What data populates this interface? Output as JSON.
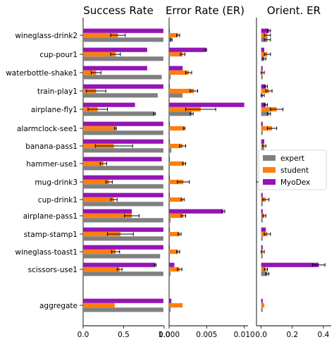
{
  "colors": {
    "expert": "#808080",
    "student": "#ff7f0e",
    "myodex": "#9414b4"
  },
  "chart_data": [
    {
      "type": "bar",
      "orientation": "horizontal",
      "title": "Success Rate",
      "categories": [
        "wineglass-drink2",
        "cup-pour1",
        "waterbottle-shake1",
        "train-play1",
        "airplane-fly1",
        "alarmclock-see1",
        "banana-pass1",
        "hammer-use1",
        "mug-drink3",
        "cup-drink1",
        "airplane-pass1",
        "stamp-stamp1",
        "wineglass-toast1",
        "scissors-use1",
        "aggregate"
      ],
      "xlim": [
        0,
        1.0
      ],
      "xticks": [
        "0.0",
        "0.5",
        "1.0"
      ],
      "tick_values": [
        0,
        0.5,
        1.0
      ],
      "series": [
        {
          "name": "MyoDex",
          "values": [
            0.99,
            0.79,
            0.79,
            0.99,
            0.64,
            0.99,
            0.99,
            0.97,
            0.99,
            0.99,
            0.6,
            0.99,
            0.99,
            0.89,
            0.99
          ],
          "err": [
            0,
            0,
            0,
            0,
            0,
            0,
            0,
            0,
            0,
            0,
            0,
            0,
            0,
            0.01,
            0
          ]
        },
        {
          "name": "student",
          "values": [
            0.43,
            0.4,
            0.16,
            0.16,
            0.18,
            0.4,
            0.38,
            0.25,
            0.32,
            0.38,
            0.6,
            0.46,
            0.4,
            0.45,
            0.39
          ],
          "err": [
            0.09,
            0.06,
            0.06,
            0.12,
            0.12,
            0.01,
            0.23,
            0.04,
            0.04,
            0.04,
            0.09,
            0.16,
            0.05,
            0.03,
            0
          ]
        },
        {
          "name": "expert",
          "values": [
            0.99,
            0.99,
            0.97,
            0.92,
            0.88,
            0.99,
            0.99,
            0.99,
            0.99,
            0.99,
            0.99,
            0.99,
            0.95,
            0.99,
            0.99
          ],
          "err": [
            0,
            0,
            0,
            0,
            0.01,
            0,
            0,
            0,
            0,
            0,
            0,
            0,
            0,
            0,
            0
          ]
        }
      ]
    },
    {
      "type": "bar",
      "orientation": "horizontal",
      "title": "Error Rate (ER)",
      "xlim": [
        0,
        0.0105
      ],
      "xticks": [
        "0.000",
        "0.005",
        "0.010"
      ],
      "tick_values": [
        0,
        0.005,
        0.01
      ],
      "series": [
        {
          "name": "MyoDex",
          "values": [
            0.0001,
            0.0049,
            0.0018,
            0.0001,
            0.01,
            0.0001,
            0.0001,
            0.0001,
            0.0001,
            0.0001,
            0.0072,
            0.0001,
            0.0001,
            0.0007,
            0.0003
          ],
          "err": [
            0,
            0.0001,
            0,
            0,
            0,
            0,
            0,
            0,
            0,
            0,
            0.0002,
            0,
            0,
            0,
            0
          ]
        },
        {
          "name": "student",
          "values": [
            0.0012,
            0.0018,
            0.0026,
            0.0033,
            0.0042,
            0.002,
            0.0018,
            0.002,
            0.0019,
            0.0018,
            0.0019,
            0.0014,
            0.0012,
            0.0014,
            0.0018
          ],
          "err": [
            0.0002,
            0.0003,
            0.0004,
            0.0005,
            0.002,
            0.0001,
            0.0004,
            0.0002,
            0.0008,
            0.0002,
            0.0003,
            0.0002,
            0.0002,
            0.0003,
            0
          ]
        },
        {
          "name": "expert",
          "values": [
            0.0003,
            0.0001,
            0.0002,
            0.0018,
            0.003,
            0.0001,
            0.0003,
            0.0001,
            0.0001,
            0.0001,
            0.0002,
            0.0001,
            0.0001,
            0.0002,
            0.0002
          ],
          "err": [
            0.0001,
            0,
            0,
            0,
            0.0002,
            0,
            0,
            0,
            0,
            0,
            0,
            0,
            0,
            0,
            0
          ]
        }
      ]
    },
    {
      "type": "bar",
      "orientation": "horizontal",
      "title": "Orient. ER",
      "xlim": [
        -0.03,
        0.45
      ],
      "xticks": [
        "0.0",
        "0.2",
        "0.4"
      ],
      "tick_values": [
        0,
        0.2,
        0.4
      ],
      "series": [
        {
          "name": "MyoDex",
          "values": [
            0.05,
            0.02,
            0.01,
            0.03,
            0.03,
            0.01,
            0.02,
            0.01,
            0.01,
            0.01,
            0.01,
            0.03,
            0.01,
            0.37,
            0.01
          ],
          "err": [
            0.01,
            0,
            0,
            0.01,
            0.01,
            0,
            0,
            0,
            0,
            0,
            0,
            0,
            0,
            0.04,
            0
          ]
        },
        {
          "name": "student",
          "values": [
            0.04,
            0.04,
            0.01,
            0.05,
            0.1,
            0.07,
            0.02,
            0.02,
            0.02,
            0.03,
            0.02,
            0.04,
            0.01,
            0.03,
            0.02
          ],
          "err": [
            0.02,
            0.02,
            0.01,
            0.02,
            0.04,
            0.03,
            0.01,
            0.02,
            0.05,
            0.02,
            0.01,
            0.02,
            0.01,
            0.01,
            0
          ]
        },
        {
          "name": "expert",
          "values": [
            0.04,
            0.02,
            0.01,
            0.01,
            0.05,
            0.01,
            0.02,
            0.01,
            0.01,
            0.01,
            0.01,
            0.01,
            0.01,
            0.04,
            0.01
          ],
          "err": [
            0.02,
            0.01,
            0,
            0.01,
            0.01,
            0,
            0,
            0,
            0,
            0,
            0,
            0,
            0,
            0.01,
            0
          ]
        }
      ],
      "legend": {
        "position": "middle-right",
        "entries": [
          "expert",
          "student",
          "MyoDex"
        ]
      }
    }
  ]
}
